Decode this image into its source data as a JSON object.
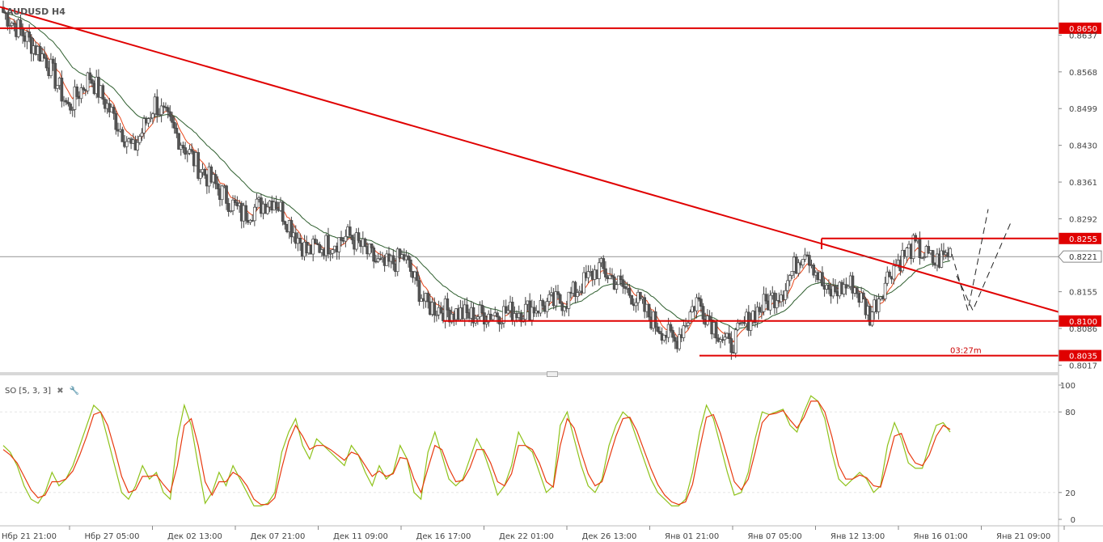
{
  "header": {
    "symbol": "AUDUSD H4"
  },
  "oscillator": {
    "label": "SO [5, 3, 3]",
    "close_icon": "close-icon",
    "settings_icon": "wrench-icon"
  },
  "timer": "03:27m",
  "colors": {
    "bull": "#ffffff",
    "bear": "#555555",
    "wick": "#444444",
    "level": "#e00000",
    "ema_fast": "#e8461a",
    "ema_slow": "#2e5e2e",
    "stoch_k": "#8ec21a",
    "stoch_d": "#e83a10",
    "grid": "#e6e6e6"
  },
  "chart_data": [
    {
      "type": "candlestick",
      "title": "AUDUSD H4",
      "ylim": [
        0.8007,
        0.8703
      ],
      "y_ticks": [
        "0.8637",
        "0.8568",
        "0.8499",
        "0.8430",
        "0.8361",
        "0.8292",
        "0.8155",
        "0.8086",
        "0.8017"
      ],
      "x_ticks": [
        "Нбр 21 21:00",
        "Нбр 27 05:00",
        "Дек 02 13:00",
        "Дек 07 21:00",
        "Дек 11 09:00",
        "Дек 16 17:00",
        "Дек 22 01:00",
        "Дек 26 13:00",
        "Янв 01 21:00",
        "Янв 07 05:00",
        "Янв 12 13:00",
        "Янв 16 01:00",
        "Янв 21 09:00"
      ],
      "current_price": "0.8221",
      "levels": [
        {
          "label": "0.8650",
          "value": 0.865
        },
        {
          "label": "0.8255",
          "value": 0.8255
        },
        {
          "label": "0.8100",
          "value": 0.81
        },
        {
          "label": "0.8035",
          "value": 0.8035
        }
      ],
      "series_notes": [
        "EMA fast",
        "EMA slow"
      ],
      "ohlc_key_points": [
        [
          0,
          0.868
        ],
        [
          20,
          0.859
        ],
        [
          30,
          0.85
        ],
        [
          40,
          0.856
        ],
        [
          60,
          0.842
        ],
        [
          70,
          0.851
        ],
        [
          90,
          0.839
        ],
        [
          110,
          0.83
        ],
        [
          125,
          0.833
        ],
        [
          140,
          0.823
        ],
        [
          160,
          0.826
        ],
        [
          175,
          0.82
        ],
        [
          185,
          0.822
        ],
        [
          195,
          0.813
        ],
        [
          215,
          0.811
        ],
        [
          240,
          0.812
        ],
        [
          260,
          0.814
        ],
        [
          275,
          0.82
        ],
        [
          290,
          0.815
        ],
        [
          300,
          0.81
        ],
        [
          310,
          0.806
        ],
        [
          320,
          0.814
        ],
        [
          335,
          0.805
        ],
        [
          345,
          0.811
        ],
        [
          360,
          0.816
        ],
        [
          370,
          0.824
        ],
        [
          380,
          0.815
        ],
        [
          392,
          0.817
        ],
        [
          400,
          0.811
        ],
        [
          410,
          0.82
        ],
        [
          420,
          0.824
        ],
        [
          430,
          0.821
        ],
        [
          437,
          0.823
        ]
      ]
    },
    {
      "type": "line",
      "title": "SO [5, 3, 3]",
      "ylim": [
        0,
        100
      ],
      "y_ticks": [
        "100",
        "80",
        "20",
        "0"
      ],
      "series": [
        {
          "name": "%K",
          "values": [
            55,
            50,
            40,
            25,
            15,
            12,
            20,
            35,
            25,
            30,
            40,
            55,
            70,
            85,
            80,
            60,
            40,
            20,
            15,
            25,
            40,
            30,
            35,
            20,
            15,
            60,
            85,
            70,
            40,
            12,
            20,
            35,
            25,
            40,
            30,
            20,
            10,
            10,
            12,
            20,
            50,
            65,
            75,
            55,
            45,
            60,
            55,
            50,
            45,
            40,
            55,
            48,
            35,
            25,
            40,
            30,
            35,
            55,
            45,
            20,
            15,
            50,
            65,
            48,
            30,
            25,
            30,
            45,
            60,
            50,
            35,
            18,
            25,
            40,
            65,
            55,
            50,
            35,
            20,
            25,
            70,
            80,
            60,
            40,
            25,
            20,
            30,
            55,
            70,
            80,
            75,
            60,
            45,
            30,
            20,
            15,
            10,
            10,
            15,
            35,
            65,
            85,
            75,
            55,
            35,
            18,
            20,
            35,
            60,
            80,
            78,
            80,
            82,
            70,
            65,
            80,
            92,
            88,
            75,
            50,
            30,
            25,
            30,
            35,
            30,
            20,
            25,
            55,
            72,
            60,
            42,
            38,
            38,
            55,
            70,
            72,
            65
          ]
        },
        {
          "name": "%D",
          "values": [
            52,
            48,
            42,
            32,
            22,
            16,
            18,
            28,
            28,
            30,
            36,
            48,
            62,
            78,
            80,
            70,
            52,
            32,
            20,
            22,
            32,
            32,
            33,
            26,
            20,
            40,
            70,
            75,
            55,
            28,
            18,
            28,
            28,
            35,
            32,
            25,
            15,
            11,
            11,
            16,
            38,
            58,
            70,
            62,
            52,
            55,
            55,
            52,
            48,
            44,
            50,
            48,
            40,
            32,
            36,
            32,
            34,
            46,
            45,
            30,
            20,
            38,
            55,
            52,
            38,
            28,
            29,
            38,
            52,
            52,
            42,
            28,
            25,
            34,
            55,
            55,
            52,
            42,
            28,
            24,
            55,
            75,
            68,
            50,
            34,
            25,
            28,
            45,
            62,
            75,
            76,
            66,
            52,
            38,
            26,
            18,
            13,
            11,
            13,
            26,
            52,
            76,
            78,
            64,
            46,
            28,
            22,
            30,
            50,
            72,
            78,
            79,
            81,
            74,
            68,
            76,
            88,
            88,
            80,
            62,
            40,
            30,
            30,
            33,
            31,
            25,
            24,
            42,
            62,
            64,
            50,
            42,
            40,
            48,
            62,
            70,
            67
          ]
        }
      ]
    }
  ]
}
